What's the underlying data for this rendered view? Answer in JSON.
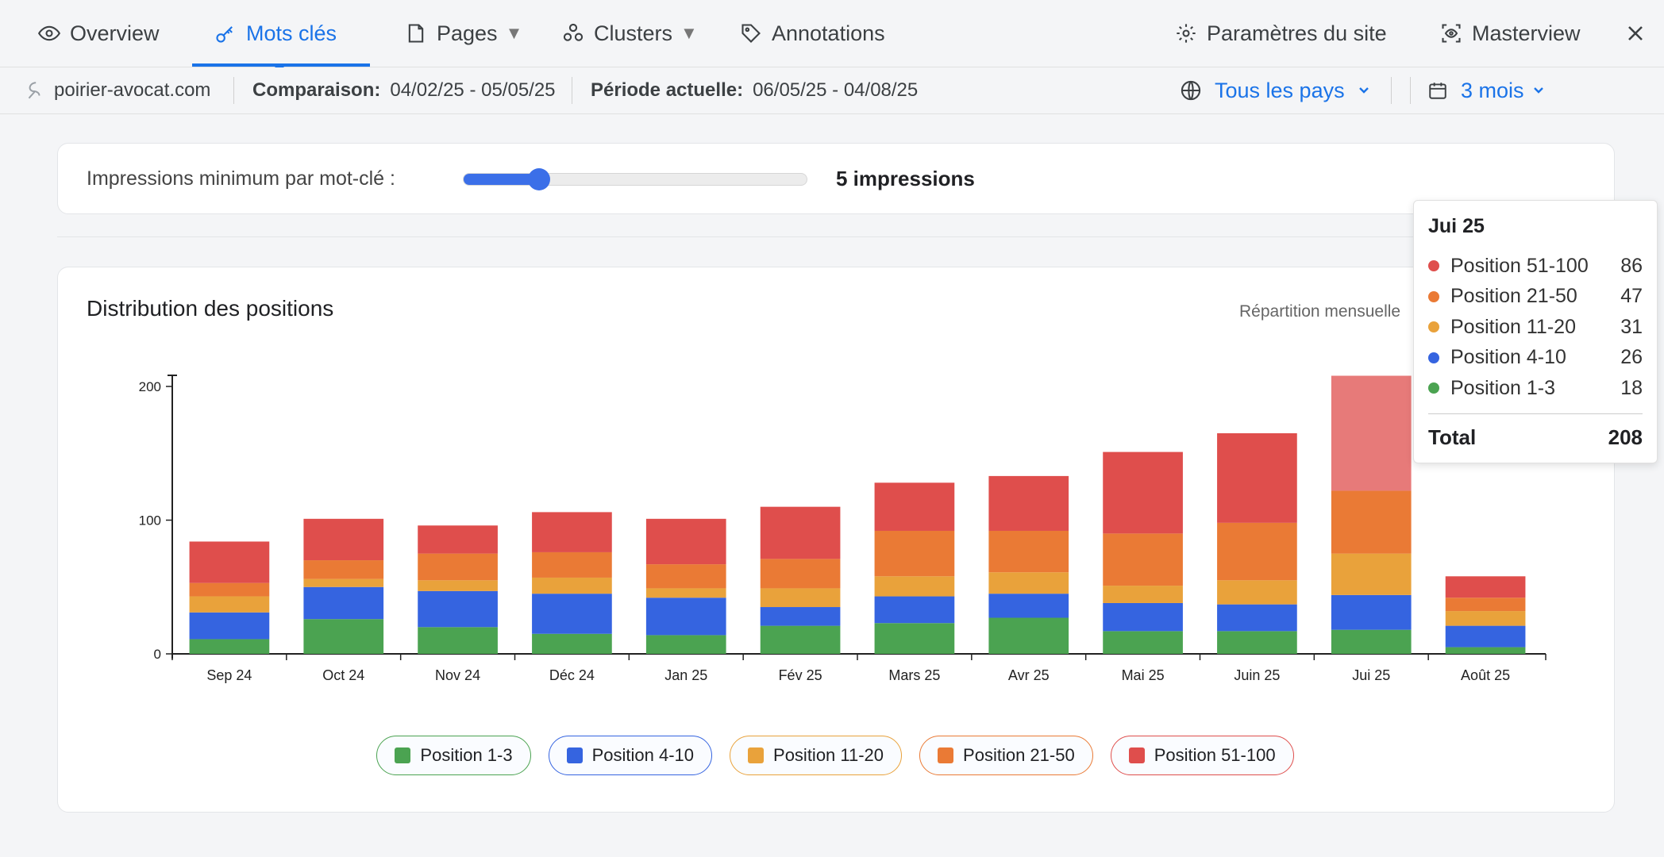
{
  "nav": {
    "overview": "Overview",
    "keywords": "Mots clés",
    "pages": "Pages",
    "clusters": "Clusters",
    "annotations": "Annotations",
    "settings": "Paramètres du site",
    "masterview": "Masterview"
  },
  "subbar": {
    "site": "poirier-avocat.com",
    "comparison_label": "Comparaison:",
    "comparison_value": "04/02/25 - 05/05/25",
    "current_label": "Période actuelle:",
    "current_value": "06/05/25 - 04/08/25",
    "country": "Tous les pays",
    "period": "3 mois"
  },
  "slider": {
    "label": "Impressions minimum par mot-clé :",
    "value_text": "5 impressions",
    "fraction": 0.2
  },
  "chart_title": "Distribution des positions",
  "chart_subtitle": "Répartition mensuelle",
  "chart_data": {
    "type": "bar",
    "stacked": true,
    "categories": [
      "Sep 24",
      "Oct 24",
      "Nov 24",
      "Déc 24",
      "Jan 25",
      "Fév 25",
      "Mars 25",
      "Avr 25",
      "Mai 25",
      "Juin 25",
      "Jui 25",
      "Août 25"
    ],
    "ylim": [
      0,
      200
    ],
    "yticks": [
      0,
      100,
      200
    ],
    "series": [
      {
        "name": "Position 1-3",
        "color": "#4ba351",
        "values": [
          11,
          26,
          20,
          15,
          14,
          21,
          23,
          27,
          17,
          17,
          18,
          5
        ]
      },
      {
        "name": "Position 4-10",
        "color": "#3564e0",
        "values": [
          20,
          24,
          27,
          30,
          28,
          14,
          20,
          18,
          21,
          20,
          26,
          16
        ]
      },
      {
        "name": "Position 11-20",
        "color": "#e9a23b",
        "values": [
          12,
          6,
          8,
          12,
          7,
          14,
          15,
          16,
          13,
          18,
          31,
          11
        ]
      },
      {
        "name": "Position 21-50",
        "color": "#ea7a35",
        "values": [
          10,
          14,
          20,
          19,
          18,
          22,
          34,
          31,
          39,
          43,
          47,
          10
        ]
      },
      {
        "name": "Position 51-100",
        "color": "#df4e4c",
        "values": [
          31,
          31,
          21,
          30,
          34,
          39,
          36,
          41,
          61,
          67,
          86,
          16
        ]
      }
    ],
    "highlight_index": 10
  },
  "tooltip": {
    "title": "Jui 25",
    "rows": [
      {
        "label": "Position 51-100",
        "value": "86",
        "color": "#df4e4c"
      },
      {
        "label": "Position 21-50",
        "value": "47",
        "color": "#ea7a35"
      },
      {
        "label": "Position 11-20",
        "value": "31",
        "color": "#e9a23b"
      },
      {
        "label": "Position 4-10",
        "value": "26",
        "color": "#3564e0"
      },
      {
        "label": "Position 1-3",
        "value": "18",
        "color": "#4ba351"
      }
    ],
    "total_label": "Total",
    "total_value": "208"
  },
  "legend": [
    {
      "label": "Position 1-3",
      "color": "#4ba351"
    },
    {
      "label": "Position 4-10",
      "color": "#3564e0"
    },
    {
      "label": "Position 11-20",
      "color": "#e9a23b"
    },
    {
      "label": "Position 21-50",
      "color": "#ea7a35"
    },
    {
      "label": "Position 51-100",
      "color": "#df4e4c"
    }
  ],
  "colors": {
    "accent": "#1a73e8"
  },
  "icons": [
    "eye-icon",
    "key-icon",
    "page-icon",
    "clusters-icon",
    "tag-icon",
    "gear-icon",
    "scan-eye-icon",
    "close-icon",
    "site-icon",
    "globe-icon",
    "calendar-icon",
    "chevron-down-icon"
  ]
}
